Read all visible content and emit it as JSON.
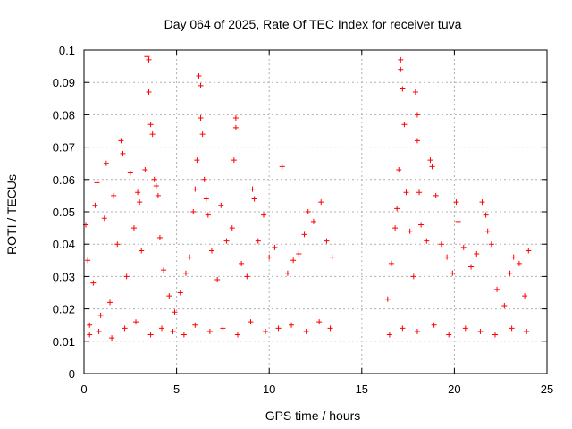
{
  "chart_data": {
    "type": "scatter",
    "title": "Day 064 of 2025, Rate Of TEC Index for receiver tuva",
    "xlabel": "GPS time / hours",
    "ylabel": "ROTI / TECUs",
    "xlim": [
      0,
      25
    ],
    "ylim": [
      0,
      0.1
    ],
    "x_ticks": [
      "0",
      "5",
      "10",
      "15",
      "20",
      "25"
    ],
    "y_ticks": [
      "0",
      "0.01",
      "0.02",
      "0.03",
      "0.04",
      "0.05",
      "0.06",
      "0.07",
      "0.08",
      "0.09",
      "0.1"
    ],
    "grid": true,
    "marker": "+",
    "color": "#ff0000",
    "series": [
      {
        "points": [
          [
            0.1,
            0.046
          ],
          [
            0.2,
            0.035
          ],
          [
            0.3,
            0.012
          ],
          [
            0.5,
            0.028
          ],
          [
            0.6,
            0.052
          ],
          [
            0.7,
            0.059
          ],
          [
            0.9,
            0.018
          ],
          [
            1.1,
            0.048
          ],
          [
            1.2,
            0.065
          ],
          [
            1.4,
            0.022
          ],
          [
            1.6,
            0.055
          ],
          [
            1.8,
            0.04
          ],
          [
            2.0,
            0.072
          ],
          [
            2.1,
            0.068
          ],
          [
            2.3,
            0.03
          ],
          [
            2.5,
            0.062
          ],
          [
            2.7,
            0.045
          ],
          [
            2.9,
            0.056
          ],
          [
            3.0,
            0.053
          ],
          [
            3.1,
            0.038
          ],
          [
            3.3,
            0.063
          ],
          [
            3.4,
            0.098
          ],
          [
            3.5,
            0.097
          ],
          [
            3.5,
            0.087
          ],
          [
            3.6,
            0.077
          ],
          [
            3.7,
            0.074
          ],
          [
            3.8,
            0.06
          ],
          [
            3.9,
            0.058
          ],
          [
            4.0,
            0.055
          ],
          [
            4.1,
            0.042
          ],
          [
            4.3,
            0.032
          ],
          [
            4.6,
            0.024
          ],
          [
            4.9,
            0.019
          ],
          [
            5.2,
            0.025
          ],
          [
            5.5,
            0.031
          ],
          [
            5.7,
            0.036
          ],
          [
            5.9,
            0.05
          ],
          [
            6.0,
            0.057
          ],
          [
            6.1,
            0.066
          ],
          [
            6.2,
            0.092
          ],
          [
            6.3,
            0.089
          ],
          [
            6.3,
            0.079
          ],
          [
            6.4,
            0.074
          ],
          [
            6.5,
            0.06
          ],
          [
            6.6,
            0.054
          ],
          [
            6.7,
            0.049
          ],
          [
            6.9,
            0.038
          ],
          [
            7.2,
            0.029
          ],
          [
            7.4,
            0.052
          ],
          [
            7.7,
            0.041
          ],
          [
            8.0,
            0.045
          ],
          [
            8.1,
            0.066
          ],
          [
            8.2,
            0.079
          ],
          [
            8.2,
            0.076
          ],
          [
            8.5,
            0.034
          ],
          [
            8.8,
            0.03
          ],
          [
            9.1,
            0.057
          ],
          [
            9.2,
            0.054
          ],
          [
            9.4,
            0.041
          ],
          [
            9.7,
            0.049
          ],
          [
            10.0,
            0.036
          ],
          [
            10.3,
            0.039
          ],
          [
            10.7,
            0.064
          ],
          [
            11.0,
            0.031
          ],
          [
            11.3,
            0.035
          ],
          [
            11.6,
            0.037
          ],
          [
            11.9,
            0.043
          ],
          [
            12.1,
            0.05
          ],
          [
            12.4,
            0.047
          ],
          [
            12.8,
            0.053
          ],
          [
            13.1,
            0.041
          ],
          [
            13.4,
            0.036
          ],
          [
            16.4,
            0.023
          ],
          [
            16.6,
            0.034
          ],
          [
            16.8,
            0.045
          ],
          [
            16.9,
            0.051
          ],
          [
            17.0,
            0.063
          ],
          [
            17.1,
            0.097
          ],
          [
            17.1,
            0.094
          ],
          [
            17.2,
            0.088
          ],
          [
            17.3,
            0.077
          ],
          [
            17.4,
            0.056
          ],
          [
            17.6,
            0.044
          ],
          [
            17.8,
            0.03
          ],
          [
            17.9,
            0.087
          ],
          [
            18.0,
            0.08
          ],
          [
            18.0,
            0.072
          ],
          [
            18.1,
            0.056
          ],
          [
            18.2,
            0.046
          ],
          [
            18.5,
            0.041
          ],
          [
            18.7,
            0.066
          ],
          [
            18.8,
            0.064
          ],
          [
            19.0,
            0.055
          ],
          [
            19.3,
            0.04
          ],
          [
            19.6,
            0.036
          ],
          [
            19.9,
            0.031
          ],
          [
            20.1,
            0.053
          ],
          [
            20.2,
            0.047
          ],
          [
            20.5,
            0.039
          ],
          [
            20.9,
            0.033
          ],
          [
            21.2,
            0.037
          ],
          [
            21.5,
            0.053
          ],
          [
            21.7,
            0.049
          ],
          [
            21.8,
            0.044
          ],
          [
            22.0,
            0.04
          ],
          [
            22.3,
            0.026
          ],
          [
            22.7,
            0.021
          ],
          [
            23.0,
            0.031
          ],
          [
            23.2,
            0.036
          ],
          [
            23.5,
            0.034
          ],
          [
            23.8,
            0.024
          ],
          [
            24.0,
            0.038
          ],
          [
            0.3,
            0.015
          ],
          [
            0.8,
            0.013
          ],
          [
            1.5,
            0.011
          ],
          [
            2.2,
            0.014
          ],
          [
            2.8,
            0.016
          ],
          [
            3.6,
            0.012
          ],
          [
            4.2,
            0.014
          ],
          [
            4.8,
            0.013
          ],
          [
            5.4,
            0.012
          ],
          [
            6.0,
            0.015
          ],
          [
            6.8,
            0.013
          ],
          [
            7.5,
            0.014
          ],
          [
            8.3,
            0.012
          ],
          [
            9.0,
            0.016
          ],
          [
            9.8,
            0.013
          ],
          [
            10.5,
            0.014
          ],
          [
            11.2,
            0.015
          ],
          [
            12.0,
            0.013
          ],
          [
            12.7,
            0.016
          ],
          [
            13.3,
            0.014
          ],
          [
            16.5,
            0.012
          ],
          [
            17.2,
            0.014
          ],
          [
            18.0,
            0.013
          ],
          [
            18.9,
            0.015
          ],
          [
            19.7,
            0.012
          ],
          [
            20.6,
            0.014
          ],
          [
            21.4,
            0.013
          ],
          [
            22.2,
            0.012
          ],
          [
            23.1,
            0.014
          ],
          [
            23.9,
            0.013
          ]
        ]
      }
    ]
  }
}
